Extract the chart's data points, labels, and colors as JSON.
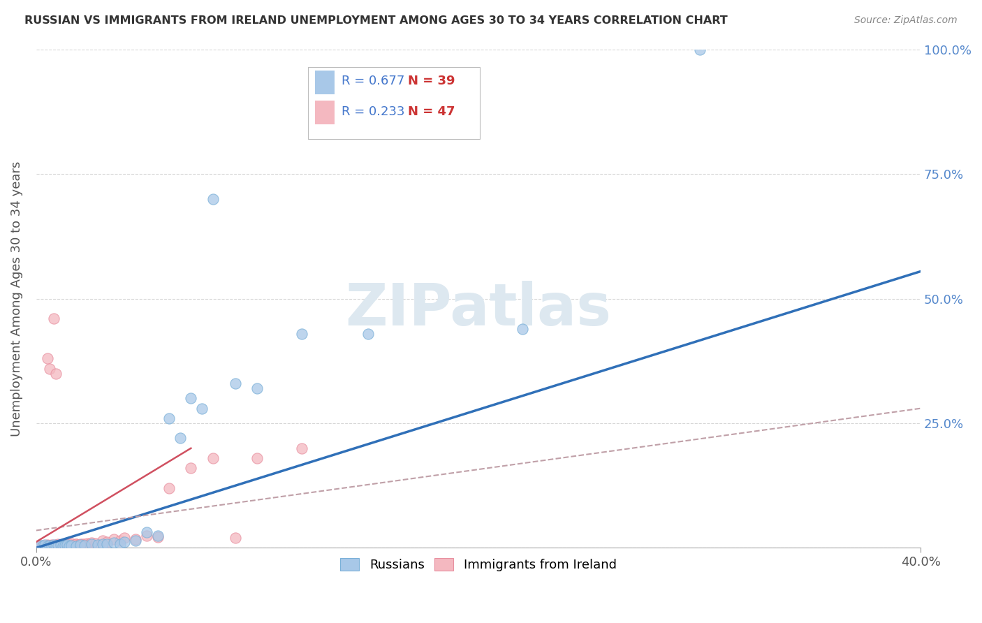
{
  "title": "RUSSIAN VS IMMIGRANTS FROM IRELAND UNEMPLOYMENT AMONG AGES 30 TO 34 YEARS CORRELATION CHART",
  "source": "Source: ZipAtlas.com",
  "ylabel": "Unemployment Among Ages 30 to 34 years",
  "xlim": [
    0.0,
    0.4
  ],
  "ylim": [
    0.0,
    1.0
  ],
  "yticks": [
    0.0,
    0.25,
    0.5,
    0.75,
    1.0
  ],
  "yticklabels_right": [
    "",
    "25.0%",
    "50.0%",
    "75.0%",
    "100.0%"
  ],
  "xtick_left": "0.0%",
  "xtick_right": "40.0%",
  "legend_R1": "R = 0.677",
  "legend_N1": "N = 39",
  "legend_R2": "R = 0.233",
  "legend_N2": "N = 47",
  "color_russian": "#a8c8e8",
  "color_russian_edge": "#7ab0d8",
  "color_ireland": "#f4b8c0",
  "color_ireland_edge": "#e890a0",
  "color_russian_line": "#3070b8",
  "color_ireland_line": "#d05060",
  "color_ireland_dash": "#c0a0a8",
  "watermark_text": "ZIPatlas",
  "watermark_color": "#dde8f0",
  "russians_x": [
    0.002,
    0.003,
    0.004,
    0.005,
    0.006,
    0.007,
    0.008,
    0.009,
    0.01,
    0.011,
    0.012,
    0.013,
    0.014,
    0.015,
    0.016,
    0.018,
    0.02,
    0.022,
    0.025,
    0.028,
    0.03,
    0.032,
    0.035,
    0.038,
    0.04,
    0.045,
    0.05,
    0.055,
    0.06,
    0.065,
    0.07,
    0.075,
    0.08,
    0.09,
    0.1,
    0.12,
    0.15,
    0.22,
    0.3
  ],
  "russians_y": [
    0.005,
    0.003,
    0.006,
    0.004,
    0.005,
    0.003,
    0.006,
    0.004,
    0.005,
    0.006,
    0.004,
    0.005,
    0.006,
    0.003,
    0.005,
    0.004,
    0.006,
    0.005,
    0.007,
    0.006,
    0.007,
    0.008,
    0.01,
    0.008,
    0.012,
    0.015,
    0.032,
    0.025,
    0.26,
    0.22,
    0.3,
    0.28,
    0.7,
    0.33,
    0.32,
    0.43,
    0.43,
    0.44,
    1.0
  ],
  "ireland_x": [
    0.001,
    0.002,
    0.003,
    0.004,
    0.005,
    0.005,
    0.006,
    0.006,
    0.007,
    0.008,
    0.008,
    0.009,
    0.009,
    0.01,
    0.01,
    0.011,
    0.012,
    0.013,
    0.014,
    0.015,
    0.015,
    0.016,
    0.017,
    0.018,
    0.018,
    0.019,
    0.02,
    0.021,
    0.022,
    0.023,
    0.024,
    0.025,
    0.027,
    0.03,
    0.032,
    0.035,
    0.038,
    0.04,
    0.045,
    0.05,
    0.055,
    0.06,
    0.07,
    0.08,
    0.09,
    0.1,
    0.12
  ],
  "ireland_y": [
    0.004,
    0.003,
    0.005,
    0.004,
    0.006,
    0.38,
    0.005,
    0.36,
    0.006,
    0.005,
    0.46,
    0.35,
    0.006,
    0.005,
    0.007,
    0.006,
    0.005,
    0.007,
    0.006,
    0.008,
    0.007,
    0.009,
    0.006,
    0.007,
    0.008,
    0.006,
    0.007,
    0.008,
    0.007,
    0.009,
    0.008,
    0.01,
    0.009,
    0.015,
    0.012,
    0.018,
    0.015,
    0.02,
    0.018,
    0.025,
    0.022,
    0.12,
    0.16,
    0.18,
    0.02,
    0.18,
    0.2
  ],
  "rus_line_x0": 0.0,
  "rus_line_y0": 0.0,
  "rus_line_x1": 0.4,
  "rus_line_y1": 0.555,
  "ire_line_x0": 0.0,
  "ire_line_y0": 0.035,
  "ire_line_x1": 0.4,
  "ire_line_y1": 0.28
}
